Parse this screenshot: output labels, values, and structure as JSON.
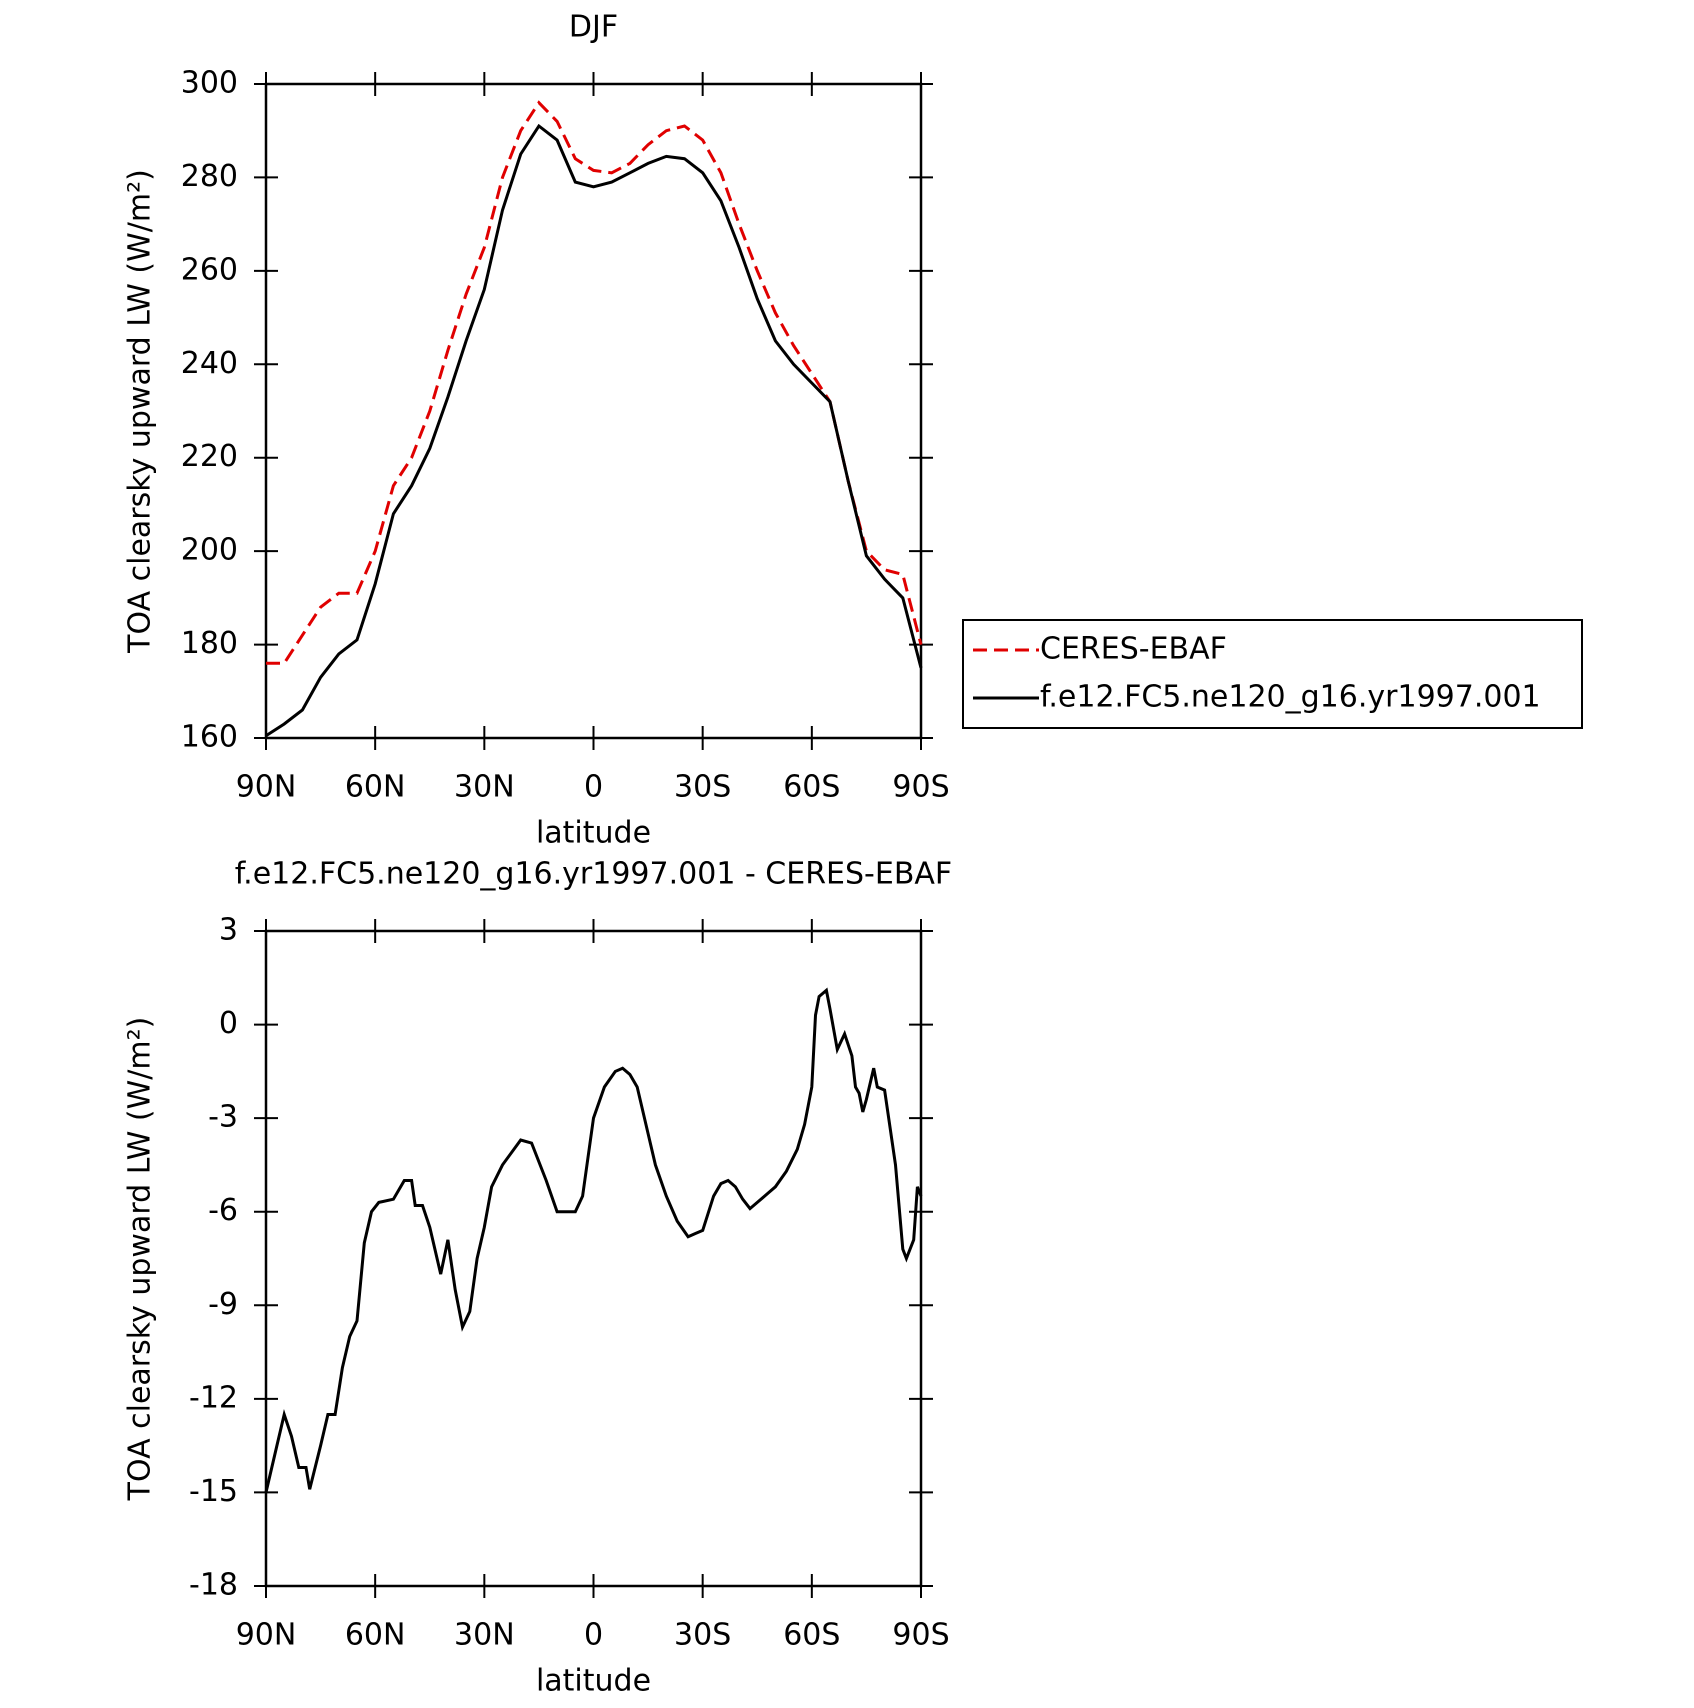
{
  "chart_data": [
    {
      "type": "line",
      "title": "DJF",
      "xlabel": "latitude",
      "ylabel": "TOA clearsky upward LW (W/m²)",
      "x": [
        90,
        85,
        80,
        75,
        70,
        65,
        60,
        55,
        50,
        45,
        40,
        35,
        30,
        25,
        20,
        15,
        10,
        5,
        0,
        -5,
        -10,
        -15,
        -20,
        -25,
        -30,
        -35,
        -40,
        -45,
        -50,
        -55,
        -60,
        -65,
        -70,
        -75,
        -80,
        -85,
        -90
      ],
      "series": [
        {
          "name": "CERES-EBAF",
          "color": "#e00000",
          "linestyle": "dashed",
          "values": [
            176,
            176,
            182,
            188,
            191,
            191,
            200,
            214,
            220,
            230,
            243,
            255,
            265,
            280,
            290,
            296,
            292,
            284,
            281.5,
            281,
            283,
            287,
            290,
            291,
            288,
            281,
            270,
            260,
            251,
            244,
            238,
            232,
            215,
            200,
            196,
            195,
            180
          ]
        },
        {
          "name": "f.e12.FC5.ne120_g16.yr1997.001",
          "color": "#000000",
          "linestyle": "solid",
          "values": [
            160.5,
            163,
            166,
            173,
            178,
            181,
            193,
            208,
            214,
            222,
            233,
            245,
            256,
            273,
            285,
            291,
            288,
            279,
            278,
            279,
            281,
            283,
            284.5,
            284,
            281,
            275,
            265,
            254,
            245,
            240,
            236,
            232,
            215,
            199,
            194,
            190,
            175
          ]
        }
      ],
      "xlim": [
        90,
        -90
      ],
      "xticks": [
        {
          "value": 90,
          "label": "90N"
        },
        {
          "value": 60,
          "label": "60N"
        },
        {
          "value": 30,
          "label": "30N"
        },
        0,
        {
          "value": -30,
          "label": "30S"
        },
        {
          "value": -60,
          "label": "60S"
        },
        {
          "value": -90,
          "label": "90S"
        }
      ],
      "ylim": [
        160,
        300
      ],
      "yticks": [
        160,
        180,
        200,
        220,
        240,
        260,
        280,
        300
      ],
      "legend": "right"
    },
    {
      "type": "line",
      "title": "f.e12.FC5.ne120_g16.yr1997.001 - CERES-EBAF",
      "xlabel": "latitude",
      "ylabel": "TOA clearsky upward LW (W/m²)",
      "x": [
        90,
        87,
        85,
        83,
        81,
        79,
        78,
        75,
        73,
        71,
        69,
        67,
        65,
        63,
        61,
        59,
        55,
        52,
        50,
        49,
        47,
        45,
        42,
        40,
        38,
        36,
        34,
        32,
        30,
        28,
        25,
        20,
        17,
        13,
        10,
        7,
        5,
        3,
        0,
        -3,
        -6,
        -8,
        -10,
        -12,
        -15,
        -17,
        -20,
        -23,
        -26,
        -28,
        -30,
        -33,
        -35,
        -37,
        -39,
        -41,
        -43,
        -45,
        -48,
        -50,
        -53,
        -56,
        -58,
        -60,
        -61,
        -62,
        -64,
        -65,
        -67,
        -69,
        -71,
        -72,
        -73,
        -74,
        -75,
        -77,
        -78,
        -80,
        -83,
        -85,
        -86,
        -88,
        -89,
        -90
      ],
      "values": [
        -15,
        -13.5,
        -12.5,
        -13.2,
        -14.2,
        -14.2,
        -14.9,
        -13.5,
        -12.5,
        -12.5,
        -11,
        -10,
        -9.5,
        -7,
        -6,
        -5.7,
        -5.6,
        -5,
        -5,
        -5.8,
        -5.8,
        -6.5,
        -8,
        -6.9,
        -8.5,
        -9.7,
        -9.2,
        -7.5,
        -6.5,
        -5.2,
        -4.5,
        -3.7,
        -3.8,
        -5,
        -6,
        -6,
        -6,
        -5.5,
        -3,
        -2,
        -1.5,
        -1.4,
        -1.6,
        -2,
        -3.5,
        -4.5,
        -5.5,
        -6.3,
        -6.8,
        -6.7,
        -6.6,
        -5.5,
        -5.1,
        -5,
        -5.2,
        -5.6,
        -5.9,
        -5.7,
        -5.4,
        -5.2,
        -4.7,
        -4,
        -3.2,
        -2,
        0.3,
        0.9,
        1.1,
        0.5,
        -0.8,
        -0.3,
        -1,
        -2,
        -2.2,
        -2.8,
        -2.4,
        -1.4,
        -2,
        -2.1,
        -4.5,
        -7.2,
        -7.5,
        -6.9,
        -5.2,
        -5.5
      ],
      "color": "#000000",
      "xlim": [
        90,
        -90
      ],
      "xticks": [
        {
          "value": 90,
          "label": "90N"
        },
        {
          "value": 60,
          "label": "60N"
        },
        {
          "value": 30,
          "label": "30N"
        },
        0,
        {
          "value": -30,
          "label": "30S"
        },
        {
          "value": -60,
          "label": "60S"
        },
        {
          "value": -90,
          "label": "90S"
        }
      ],
      "ylim": [
        -18,
        3
      ],
      "yticks": [
        -18,
        -15,
        -12,
        -9,
        -6,
        -3,
        0,
        3
      ]
    }
  ]
}
